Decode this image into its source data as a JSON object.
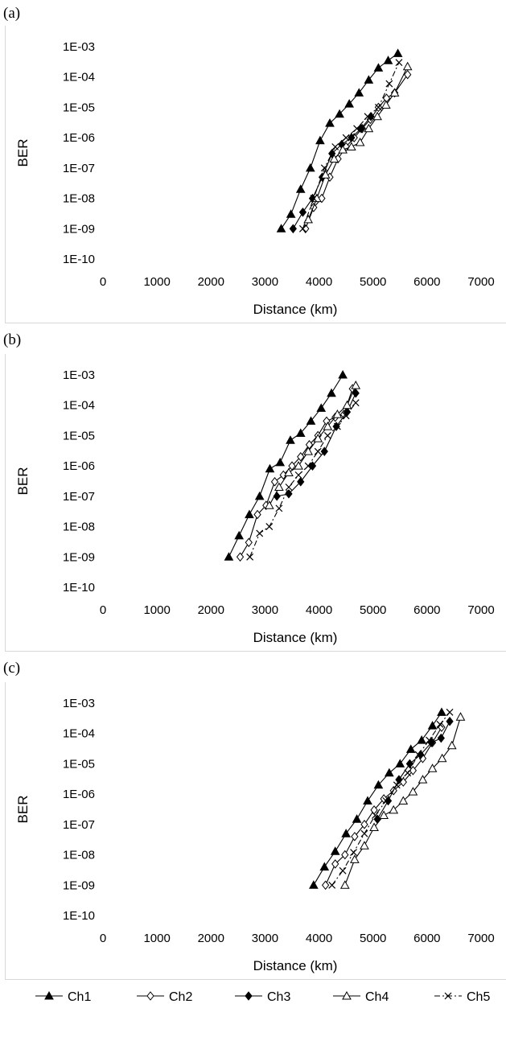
{
  "legend": {
    "entries": [
      {
        "name": "Ch1",
        "marker": "filled-triangle",
        "dash": "solid"
      },
      {
        "name": "Ch2",
        "marker": "open-diamond",
        "dash": "solid"
      },
      {
        "name": "Ch3",
        "marker": "filled-diamond",
        "dash": "solid"
      },
      {
        "name": "Ch4",
        "marker": "open-triangle",
        "dash": "solid"
      },
      {
        "name": "Ch5",
        "marker": "cross",
        "dash": "dashdot"
      }
    ]
  },
  "chart_data": [
    {
      "panel_label": "(a)",
      "type": "line",
      "xlabel": "Distance (km)",
      "ylabel": "BER",
      "xlim": [
        0,
        7000
      ],
      "xticks": [
        "0",
        "1000",
        "2000",
        "3000",
        "4000",
        "5000",
        "6000",
        "7000"
      ],
      "ylim": [
        "1E-10",
        "1E-03"
      ],
      "y_scale": "log",
      "yticks": [
        "1E-03",
        "1E-04",
        "1E-05",
        "1E-06",
        "1E-07",
        "1E-08",
        "1E-09",
        "1E-10"
      ],
      "grid": false,
      "series": [
        {
          "name": "Ch1",
          "x": [
            3300,
            3480,
            3660,
            3840,
            4020,
            4200,
            4380,
            4560,
            4740,
            4920,
            5100,
            5280,
            5460
          ],
          "y": [
            1e-09,
            3e-09,
            2e-08,
            1e-07,
            8e-07,
            3e-06,
            6e-06,
            1.3e-05,
            3e-05,
            8e-05,
            0.0002,
            0.00035,
            0.0006
          ]
        },
        {
          "name": "Ch2",
          "x": [
            3750,
            3900,
            4050,
            4200,
            4350,
            4500,
            4650,
            4800,
            4950,
            5100,
            5250,
            5400,
            5640
          ],
          "y": [
            1e-09,
            5e-09,
            1e-08,
            5e-08,
            2e-07,
            5e-07,
            1e-06,
            2e-06,
            4e-06,
            1e-05,
            2e-05,
            3e-05,
            0.00012
          ]
        },
        {
          "name": "Ch3",
          "x": [
            3520,
            3700,
            3880,
            4060,
            4240,
            4420,
            4600,
            4780,
            4960
          ],
          "y": [
            1e-09,
            3.5e-09,
            1e-08,
            5e-08,
            3e-07,
            6e-07,
            1e-06,
            2e-06,
            5e-06
          ]
        },
        {
          "name": "Ch4",
          "x": [
            3800,
            3960,
            4120,
            4280,
            4440,
            4600,
            4760,
            4920,
            5080,
            5240,
            5400,
            5640
          ],
          "y": [
            2e-09,
            1e-08,
            6e-08,
            2e-07,
            4e-07,
            5e-07,
            7e-07,
            2e-06,
            5e-06,
            1.2e-05,
            3e-05,
            0.00022
          ]
        },
        {
          "name": "Ch5",
          "x": [
            3700,
            3900,
            4100,
            4300,
            4500,
            4700,
            4900,
            5100,
            5300,
            5480
          ],
          "y": [
            1e-09,
            1e-08,
            1e-07,
            5e-07,
            1e-06,
            2e-06,
            5e-06,
            1e-05,
            6e-05,
            0.0003
          ]
        }
      ]
    },
    {
      "panel_label": "(b)",
      "type": "line",
      "xlabel": "Distance (km)",
      "ylabel": "BER",
      "xlim": [
        0,
        7000
      ],
      "xticks": [
        "0",
        "1000",
        "2000",
        "3000",
        "4000",
        "5000",
        "6000",
        "7000"
      ],
      "ylim": [
        "1E-10",
        "1E-03"
      ],
      "y_scale": "log",
      "yticks": [
        "1E-03",
        "1E-04",
        "1E-05",
        "1E-06",
        "1E-07",
        "1E-08",
        "1E-09",
        "1E-10"
      ],
      "grid": false,
      "series": [
        {
          "name": "Ch1",
          "x": [
            2330,
            2520,
            2710,
            2900,
            3090,
            3280,
            3470,
            3660,
            3850,
            4040,
            4230,
            4440
          ],
          "y": [
            1e-09,
            5e-09,
            2.5e-08,
            1e-07,
            8e-07,
            1.3e-06,
            7e-06,
            1.2e-05,
            3e-05,
            8e-05,
            0.00025,
            0.001
          ]
        },
        {
          "name": "Ch2",
          "x": [
            2540,
            2700,
            2860,
            3020,
            3180,
            3340,
            3500,
            3660,
            3820,
            3980,
            4140,
            4300,
            4460,
            4620
          ],
          "y": [
            1e-09,
            3e-09,
            2.5e-08,
            5e-08,
            3e-07,
            5e-07,
            1e-06,
            2e-06,
            5e-06,
            1e-05,
            3e-05,
            4e-05,
            5e-05,
            0.00035
          ]
        },
        {
          "name": "Ch3",
          "x": [
            3220,
            3440,
            3660,
            3880,
            4100,
            4320,
            4520,
            4680
          ],
          "y": [
            1e-07,
            1.2e-07,
            3e-07,
            1e-06,
            3e-06,
            2e-05,
            6e-05,
            0.00025
          ]
        },
        {
          "name": "Ch4",
          "x": [
            3080,
            3260,
            3440,
            3620,
            3800,
            3980,
            4160,
            4340,
            4520,
            4680
          ],
          "y": [
            5e-08,
            2e-07,
            6e-07,
            1e-06,
            3e-06,
            8e-06,
            2e-05,
            5e-05,
            0.0001,
            0.00045
          ]
        },
        {
          "name": "Ch5",
          "x": [
            2720,
            2900,
            3080,
            3260,
            3440,
            3620,
            3800,
            3980,
            4160,
            4340,
            4500,
            4680
          ],
          "y": [
            1e-09,
            6e-09,
            1e-08,
            4e-08,
            2e-07,
            5e-07,
            1e-06,
            3e-06,
            1e-05,
            2e-05,
            4.5e-05,
            0.00012
          ]
        }
      ]
    },
    {
      "panel_label": "(c)",
      "type": "line",
      "xlabel": "Distance (km)",
      "ylabel": "BER",
      "xlim": [
        0,
        7000
      ],
      "xticks": [
        "0",
        "1000",
        "2000",
        "3000",
        "4000",
        "5000",
        "6000",
        "7000"
      ],
      "ylim": [
        "1E-10",
        "1E-03"
      ],
      "y_scale": "log",
      "yticks": [
        "1E-03",
        "1E-04",
        "1E-05",
        "1E-06",
        "1E-07",
        "1E-08",
        "1E-09",
        "1E-10"
      ],
      "grid": false,
      "series": [
        {
          "name": "Ch1",
          "x": [
            3900,
            4100,
            4300,
            4500,
            4700,
            4900,
            5100,
            5300,
            5500,
            5700,
            5900,
            6100,
            6270
          ],
          "y": [
            1e-09,
            4e-09,
            1.3e-08,
            5e-08,
            1.5e-07,
            6e-07,
            2e-06,
            5e-06,
            1e-05,
            3e-05,
            6e-05,
            0.00018,
            0.0005
          ]
        },
        {
          "name": "Ch2",
          "x": [
            4120,
            4300,
            4480,
            4660,
            4840,
            5020,
            5200,
            5380,
            5560,
            5740,
            5920,
            6100,
            6270
          ],
          "y": [
            1e-09,
            5e-09,
            1e-08,
            4e-08,
            1e-07,
            3e-07,
            7e-07,
            1.3e-06,
            2.5e-06,
            6e-06,
            1.5e-05,
            5e-05,
            0.00016
          ]
        },
        {
          "name": "Ch3",
          "x": [
            5080,
            5280,
            5480,
            5680,
            5880,
            6080,
            6260,
            6420
          ],
          "y": [
            1.5e-07,
            6e-07,
            3e-06,
            1e-05,
            2e-05,
            5e-05,
            7e-05,
            0.00025
          ]
        },
        {
          "name": "Ch4",
          "x": [
            4480,
            4660,
            4840,
            5020,
            5200,
            5380,
            5560,
            5740,
            5920,
            6100,
            6280,
            6460,
            6620
          ],
          "y": [
            1e-09,
            7e-09,
            2e-08,
            8e-08,
            2e-07,
            3e-07,
            6e-07,
            1.2e-06,
            3e-06,
            7e-06,
            1.5e-05,
            4e-05,
            0.00035
          ]
        },
        {
          "name": "Ch5",
          "x": [
            4240,
            4440,
            4640,
            4840,
            5040,
            5240,
            5440,
            5640,
            5840,
            6040,
            6240,
            6420
          ],
          "y": [
            1e-09,
            3e-09,
            1.2e-08,
            5e-08,
            2e-07,
            6e-07,
            2e-06,
            5e-06,
            2e-05,
            6e-05,
            0.0002,
            0.0005
          ]
        }
      ]
    }
  ]
}
